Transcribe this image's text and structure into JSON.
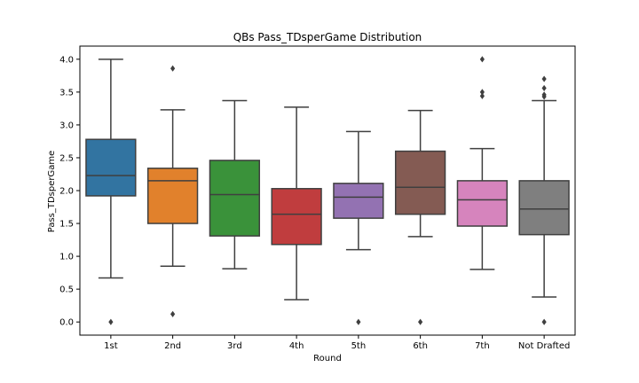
{
  "chart_data": {
    "type": "box",
    "title": "QBs Pass_TDsperGame Distribution",
    "xlabel": "Round",
    "ylabel": "Pass_TDsperGame",
    "ylim": [
      -0.2,
      4.2
    ],
    "yticks": [
      "0.0",
      "0.5",
      "1.0",
      "1.5",
      "2.0",
      "2.5",
      "3.0",
      "3.5",
      "4.0"
    ],
    "grid": false,
    "categories": [
      "1st",
      "2nd",
      "3rd",
      "4th",
      "5th",
      "6th",
      "7th",
      "Not Drafted"
    ],
    "boxes": [
      {
        "category": "1st",
        "color": "#3274a1",
        "whisker_low": 0.67,
        "q1": 1.92,
        "median": 2.23,
        "q3": 2.78,
        "whisker_high": 4.0,
        "outliers": [
          0.0
        ]
      },
      {
        "category": "2nd",
        "color": "#e1812c",
        "whisker_low": 0.85,
        "q1": 1.5,
        "median": 2.15,
        "q3": 2.34,
        "whisker_high": 3.23,
        "outliers": [
          3.86,
          0.12
        ]
      },
      {
        "category": "3rd",
        "color": "#3a923a",
        "whisker_low": 0.81,
        "q1": 1.31,
        "median": 1.94,
        "q3": 2.46,
        "whisker_high": 3.37,
        "outliers": []
      },
      {
        "category": "4th",
        "color": "#c03d3e",
        "whisker_low": 0.34,
        "q1": 1.18,
        "median": 1.64,
        "q3": 2.03,
        "whisker_high": 3.27,
        "outliers": []
      },
      {
        "category": "5th",
        "color": "#9372b2",
        "whisker_low": 1.1,
        "q1": 1.58,
        "median": 1.9,
        "q3": 2.11,
        "whisker_high": 2.9,
        "outliers": [
          0.0
        ]
      },
      {
        "category": "6th",
        "color": "#845b53",
        "whisker_low": 1.3,
        "q1": 1.64,
        "median": 2.05,
        "q3": 2.6,
        "whisker_high": 3.22,
        "outliers": [
          0.0
        ]
      },
      {
        "category": "7th",
        "color": "#d684bd",
        "whisker_low": 0.8,
        "q1": 1.46,
        "median": 1.86,
        "q3": 2.15,
        "whisker_high": 2.64,
        "outliers": [
          4.0,
          3.5,
          3.44
        ]
      },
      {
        "category": "Not Drafted",
        "color": "#7f7f7f",
        "whisker_low": 0.38,
        "q1": 1.33,
        "median": 1.72,
        "q3": 2.15,
        "whisker_high": 3.37,
        "outliers": [
          3.7,
          3.56,
          3.46,
          3.43,
          0.0
        ]
      }
    ]
  }
}
